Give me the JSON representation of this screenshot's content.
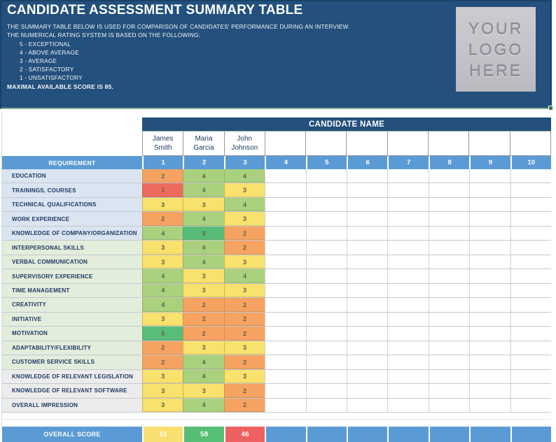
{
  "header": {
    "title": "CANDIDATE ASSESSMENT SUMMARY TABLE",
    "description_line1": "THE SUMMARY TABLE BELOW IS USED FOR COMPARISON OF CANDIDATES' PERFORMANCE DURING AN INTERVIEW.",
    "description_line2": "THE NUMERICAL RATING SYSTEM IS BASED ON THE FOLLOWING:",
    "rating_scale": [
      "5 - EXCEPTIONAL",
      "4 - ABOVE AVERAGE",
      "3 - AVERAGE",
      "2 - SATISFACTORY",
      "1 - UNSATISFACTORY"
    ],
    "max_score_note": "MAXIMAL AVAILABLE  SCORE IS 85.",
    "logo_placeholder_lines": [
      "YOUR",
      "LOGO",
      "HERE"
    ]
  },
  "table": {
    "candidate_header": "CANDIDATE NAME",
    "requirement_header": "REQUIREMENT",
    "overall_label": "OVERALL SCORE",
    "column_numbers": [
      "1",
      "2",
      "3",
      "4",
      "5",
      "6",
      "7",
      "8",
      "9",
      "10"
    ],
    "candidates": [
      "James Smith",
      "Maria Garcia",
      "John Johnson"
    ],
    "rows": [
      {
        "label": "EDUCATION",
        "group": "blue",
        "scores": [
          2,
          4,
          4
        ]
      },
      {
        "label": "TRAININGS, COURSES",
        "group": "blue",
        "scores": [
          1,
          4,
          3
        ]
      },
      {
        "label": "TECHNICAL QUALIFICATIONS",
        "group": "blue",
        "scores": [
          3,
          3,
          4
        ]
      },
      {
        "label": "WORK EXPERIENCE",
        "group": "blue",
        "scores": [
          2,
          4,
          3
        ]
      },
      {
        "label": "KNOWLEDGE OF COMPANY/ORGANIZATION",
        "group": "blue",
        "scores": [
          4,
          5,
          2
        ]
      },
      {
        "label": "INTERPERSONAL SKILLS",
        "group": "green",
        "scores": [
          3,
          4,
          2
        ]
      },
      {
        "label": "VERBAL COMMUNICATION",
        "group": "green",
        "scores": [
          3,
          4,
          3
        ]
      },
      {
        "label": "SUPERVISORY EXPERIENCE",
        "group": "green",
        "scores": [
          4,
          3,
          4
        ]
      },
      {
        "label": "TIME MANAGEMENT",
        "group": "green",
        "scores": [
          4,
          3,
          3
        ]
      },
      {
        "label": "CREATIVITY",
        "group": "green",
        "scores": [
          4,
          2,
          2
        ]
      },
      {
        "label": "INITIATIVE",
        "group": "green",
        "scores": [
          3,
          2,
          2
        ]
      },
      {
        "label": "MOTIVATION",
        "group": "green",
        "scores": [
          5,
          2,
          2
        ]
      },
      {
        "label": "ADAPTABILITY/FLEXIBILITY",
        "group": "green",
        "scores": [
          2,
          3,
          3
        ]
      },
      {
        "label": "CUSTOMER SERVICE SKILLS",
        "group": "green",
        "scores": [
          2,
          4,
          2
        ]
      },
      {
        "label": "KNOWLEDGE OF RELEVANT LEGISLATION",
        "group": "gray",
        "scores": [
          3,
          4,
          3
        ]
      },
      {
        "label": "KNOWLEDGE OF RELEVANT SOFTWARE",
        "group": "gray",
        "scores": [
          3,
          3,
          2
        ]
      },
      {
        "label": "OVERALL IMPRESSION",
        "group": "gray",
        "scores": [
          3,
          4,
          2
        ]
      }
    ],
    "overall_scores": [
      {
        "value": "51",
        "color": "#F8DF6F"
      },
      {
        "value": "58",
        "color": "#57BE75"
      },
      {
        "value": "46",
        "color": "#EE6161"
      }
    ],
    "score_colors": {
      "1": "#ED6A5E",
      "2": "#F6A361",
      "3": "#F8E16C",
      "4": "#A9D17E",
      "5": "#57BD79"
    },
    "label_group_colors": {
      "blue": "#DBE5F1",
      "green": "#E3EDDB",
      "gray": "#ECECEC"
    },
    "accent_colors": {
      "dark_blue": "#23507C",
      "medium_blue": "#5B9BD5"
    }
  }
}
